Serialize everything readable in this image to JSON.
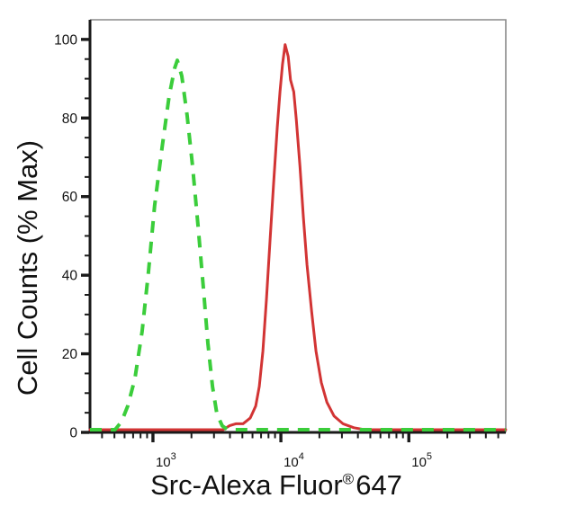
{
  "figure": {
    "title": "",
    "background": "#ffffff"
  },
  "colors": {
    "control_green": "#3BCD3B",
    "sample_red": "#D23434",
    "axis": "#1a1a1a",
    "frame": "#8a8a8a",
    "text": "#111111"
  },
  "chart_data": {
    "type": "line",
    "subtype": "flow-cytometry-overlay-histogram",
    "title": "",
    "xlabel": "Src-Alexa Fluor® 647",
    "xlabel_parts": {
      "main": "Src-Alexa Fluor",
      "registered": "®",
      "suffix": "647"
    },
    "ylabel": "Cell Counts (% Max)",
    "grid": false,
    "legend": "none",
    "x_axis": {
      "scale": "log10",
      "range_log10": [
        2.508,
        5.758
      ],
      "decade_label_exponents": [
        3,
        4,
        5
      ],
      "decade_label_base": "10",
      "minor_ticks": "2-9 per decade"
    },
    "y_axis": {
      "range": [
        0,
        105
      ],
      "major_ticks": [
        0,
        20,
        40,
        60,
        80,
        100
      ],
      "minor_tick_step": 5
    },
    "series": [
      {
        "name": "green dashed curve (negative control)",
        "style": "dashed",
        "color_key": "control_green",
        "peak": {
          "x": 1550,
          "y": 94
        },
        "points": [
          [
            322,
            0
          ],
          [
            505,
            0
          ],
          [
            567,
            2
          ],
          [
            635,
            6
          ],
          [
            723,
            13
          ],
          [
            823,
            25
          ],
          [
            922,
            40
          ],
          [
            1030,
            57
          ],
          [
            1180,
            72
          ],
          [
            1340,
            85
          ],
          [
            1480,
            92
          ],
          [
            1550,
            94
          ],
          [
            1680,
            90
          ],
          [
            1850,
            80
          ],
          [
            2040,
            67
          ],
          [
            2250,
            52
          ],
          [
            2480,
            36
          ],
          [
            2690,
            22
          ],
          [
            2920,
            11
          ],
          [
            3160,
            4
          ],
          [
            3480,
            1
          ],
          [
            3840,
            0
          ],
          [
            572000,
            0
          ]
        ]
      },
      {
        "name": "red solid curve (Src-Alexa Fluor 647 stained)",
        "style": "solid",
        "color_key": "sample_red",
        "peak": {
          "x": 10800,
          "y": 98
        },
        "points": [
          [
            322,
            0
          ],
          [
            3540,
            0
          ],
          [
            3960,
            1
          ],
          [
            4440,
            1.5
          ],
          [
            5060,
            1.5
          ],
          [
            5770,
            3
          ],
          [
            6350,
            6
          ],
          [
            6780,
            11
          ],
          [
            7230,
            20
          ],
          [
            7710,
            33
          ],
          [
            8220,
            48
          ],
          [
            8780,
            63
          ],
          [
            9380,
            77
          ],
          [
            9840,
            86
          ],
          [
            10300,
            93
          ],
          [
            10800,
            98
          ],
          [
            11400,
            95
          ],
          [
            11900,
            89
          ],
          [
            12600,
            86
          ],
          [
            13200,
            79
          ],
          [
            14100,
            67
          ],
          [
            15000,
            54
          ],
          [
            16000,
            42
          ],
          [
            17400,
            30
          ],
          [
            18800,
            20
          ],
          [
            20700,
            12
          ],
          [
            22900,
            7
          ],
          [
            26000,
            3.5
          ],
          [
            30600,
            1.5
          ],
          [
            37200,
            0.5
          ],
          [
            45200,
            0
          ],
          [
            572000,
            0
          ]
        ]
      }
    ]
  }
}
